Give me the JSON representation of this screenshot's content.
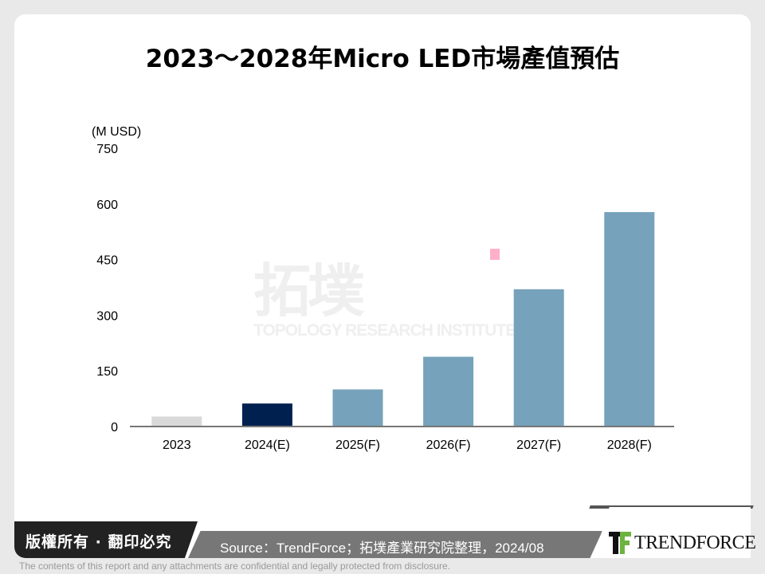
{
  "title": "2023～2028年Micro LED市場產值預估",
  "watermark": {
    "cn": "拓墣",
    "en": "TOPOLOGY RESEARCH INSTITUTE"
  },
  "chart_data": {
    "type": "bar",
    "title": "2023～2028年Micro LED市場產值預估",
    "ylabel": "(M USD)",
    "xlabel": "",
    "categories": [
      "2023",
      "2024(E)",
      "2025(F)",
      "2026(F)",
      "2027(F)",
      "2028(F)"
    ],
    "values": [
      27,
      62,
      100,
      188,
      370,
      578
    ],
    "bar_colors": [
      "#d9d9d9",
      "#002050",
      "#76a2bb",
      "#76a2bb",
      "#76a2bb",
      "#76a2bb"
    ],
    "ylim": [
      0,
      750
    ],
    "yticks": [
      "0",
      "150",
      "300",
      "450",
      "600",
      "750"
    ],
    "grid": false,
    "legend": "none"
  },
  "footer": {
    "copyright": "版權所有 · 翻印必究",
    "source": "Source：TrendForce；拓墣產業研究院整理，2024/08",
    "logo": "TRENDFORCE",
    "disclaimer": "The contents of this report and any attachments are confidential and legally protected from disclosure."
  }
}
